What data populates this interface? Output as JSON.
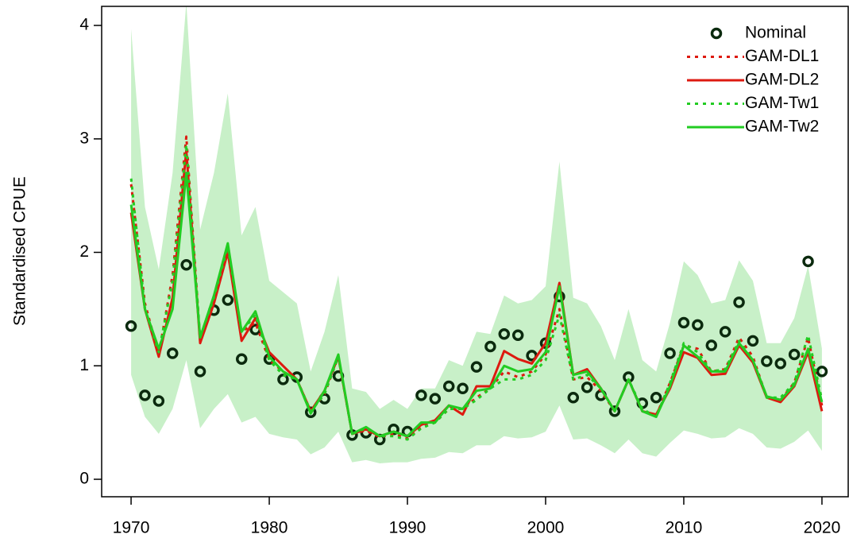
{
  "chart_data": {
    "type": "line",
    "y_label": "Standardised CPUE",
    "x": [
      1970,
      1971,
      1972,
      1973,
      1974,
      1975,
      1976,
      1977,
      1978,
      1979,
      1980,
      1981,
      1982,
      1983,
      1984,
      1985,
      1986,
      1987,
      1988,
      1989,
      1990,
      1991,
      1992,
      1993,
      1994,
      1995,
      1996,
      1997,
      1998,
      1999,
      2000,
      2001,
      2002,
      2003,
      2004,
      2005,
      2006,
      2007,
      2008,
      2009,
      2010,
      2011,
      2012,
      2013,
      2014,
      2015,
      2016,
      2017,
      2018,
      2019,
      2020
    ],
    "xlim": [
      1967.87,
      2021.9
    ],
    "xticks": [
      1970,
      1980,
      1990,
      2000,
      2010,
      2020
    ],
    "ylim": [
      -0.154,
      4.168
    ],
    "yticks": [
      0,
      1,
      2,
      3,
      4
    ],
    "legend": "top-right",
    "band": {
      "color": "#c8f0c8",
      "lower": [
        0.92,
        0.55,
        0.4,
        0.62,
        1.05,
        0.45,
        0.62,
        0.75,
        0.5,
        0.55,
        0.4,
        0.37,
        0.35,
        0.22,
        0.28,
        0.42,
        0.15,
        0.17,
        0.14,
        0.15,
        0.15,
        0.18,
        0.19,
        0.24,
        0.23,
        0.3,
        0.3,
        0.38,
        0.36,
        0.37,
        0.42,
        0.65,
        0.35,
        0.36,
        0.3,
        0.23,
        0.35,
        0.23,
        0.2,
        0.32,
        0.43,
        0.4,
        0.36,
        0.37,
        0.45,
        0.4,
        0.28,
        0.27,
        0.33,
        0.43,
        0.25
      ],
      "upper": [
        3.97,
        2.4,
        1.85,
        2.7,
        4.2,
        2.2,
        2.7,
        3.4,
        2.15,
        2.4,
        1.75,
        1.65,
        1.55,
        0.95,
        1.3,
        1.8,
        0.8,
        0.77,
        0.62,
        0.7,
        0.62,
        0.8,
        0.8,
        1.05,
        1.0,
        1.3,
        1.28,
        1.62,
        1.55,
        1.58,
        1.7,
        2.8,
        1.6,
        1.55,
        1.35,
        1.05,
        1.5,
        1.05,
        0.95,
        1.38,
        1.92,
        1.8,
        1.55,
        1.58,
        1.93,
        1.75,
        1.2,
        1.2,
        1.42,
        1.88,
        1.15
      ]
    },
    "series": [
      {
        "name": "Nominal",
        "color": "#0b2a0e",
        "style": "points",
        "values": [
          1.35,
          0.74,
          0.69,
          1.11,
          1.89,
          0.95,
          1.49,
          1.58,
          1.06,
          1.32,
          1.06,
          0.88,
          0.9,
          0.59,
          0.71,
          0.91,
          0.39,
          0.41,
          0.35,
          0.44,
          0.42,
          0.74,
          0.71,
          0.82,
          0.8,
          0.99,
          1.17,
          1.28,
          1.27,
          1.09,
          1.2,
          1.61,
          0.72,
          0.81,
          0.74,
          0.6,
          0.9,
          0.67,
          0.72,
          1.11,
          1.38,
          1.36,
          1.18,
          1.3,
          1.56,
          1.22,
          1.04,
          1.02,
          1.1,
          1.92,
          0.95
        ]
      },
      {
        "name": "GAM-DL1",
        "color": "#dd1a10",
        "style": "dotted",
        "values": [
          2.6,
          1.55,
          1.1,
          1.8,
          3.02,
          1.22,
          1.6,
          2.02,
          1.3,
          1.38,
          1.05,
          0.95,
          0.88,
          0.6,
          0.75,
          1.08,
          0.4,
          0.43,
          0.37,
          0.4,
          0.36,
          0.46,
          0.5,
          0.62,
          0.62,
          0.72,
          0.8,
          0.95,
          0.9,
          0.95,
          1.1,
          1.5,
          0.88,
          0.9,
          0.78,
          0.6,
          0.88,
          0.6,
          0.56,
          0.85,
          1.18,
          1.15,
          0.95,
          0.97,
          1.25,
          1.08,
          0.72,
          0.7,
          0.85,
          1.25,
          0.65
        ]
      },
      {
        "name": "GAM-DL2",
        "color": "#dd1a10",
        "style": "solid",
        "values": [
          2.35,
          1.5,
          1.08,
          1.6,
          2.9,
          1.2,
          1.55,
          2.0,
          1.22,
          1.42,
          1.12,
          1.0,
          0.88,
          0.6,
          0.78,
          1.08,
          0.4,
          0.44,
          0.38,
          0.42,
          0.38,
          0.48,
          0.52,
          0.65,
          0.57,
          0.82,
          0.82,
          1.13,
          1.06,
          1.02,
          1.2,
          1.73,
          0.92,
          0.97,
          0.8,
          0.6,
          0.88,
          0.6,
          0.57,
          0.8,
          1.12,
          1.07,
          0.92,
          0.93,
          1.18,
          1.03,
          0.72,
          0.68,
          0.82,
          1.12,
          0.6
        ]
      },
      {
        "name": "GAM-Tw1",
        "color": "#22cc22",
        "style": "dotted",
        "values": [
          2.65,
          1.5,
          1.12,
          1.75,
          2.95,
          1.25,
          1.6,
          2.05,
          1.3,
          1.45,
          1.05,
          0.92,
          0.88,
          0.6,
          0.75,
          1.08,
          0.4,
          0.45,
          0.38,
          0.38,
          0.35,
          0.45,
          0.5,
          0.62,
          0.62,
          0.7,
          0.8,
          0.88,
          0.88,
          0.92,
          1.05,
          1.45,
          0.88,
          0.92,
          0.8,
          0.6,
          0.88,
          0.62,
          0.55,
          0.85,
          1.2,
          1.12,
          0.95,
          0.97,
          1.22,
          1.05,
          0.72,
          0.72,
          0.85,
          1.27,
          0.7
        ]
      },
      {
        "name": "GAM-Tw2",
        "color": "#22cc22",
        "style": "solid",
        "values": [
          2.42,
          1.5,
          1.15,
          1.5,
          2.7,
          1.25,
          1.62,
          2.08,
          1.3,
          1.48,
          1.08,
          0.95,
          0.88,
          0.58,
          0.78,
          1.1,
          0.4,
          0.46,
          0.38,
          0.42,
          0.38,
          0.5,
          0.5,
          0.65,
          0.62,
          0.78,
          0.8,
          1.0,
          0.95,
          0.97,
          1.12,
          1.7,
          0.92,
          0.95,
          0.8,
          0.6,
          0.88,
          0.6,
          0.55,
          0.82,
          1.18,
          1.08,
          0.95,
          0.95,
          1.2,
          1.05,
          0.73,
          0.7,
          0.83,
          1.15,
          0.68
        ]
      }
    ]
  }
}
